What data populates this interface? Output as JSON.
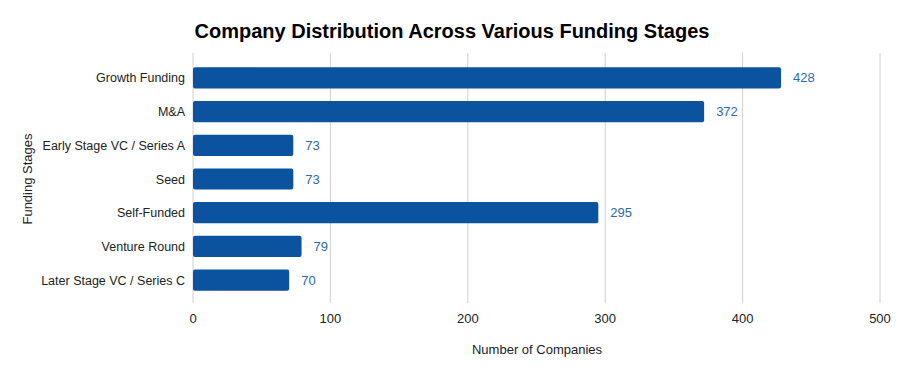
{
  "chart_data": {
    "type": "bar",
    "orientation": "horizontal",
    "title": "Company Distribution Across Various Funding Stages",
    "x_label": "Number of Companies",
    "y_label": "Funding Stages",
    "categories": [
      "Growth Funding",
      "M&A",
      "Early Stage VC / Series A",
      "Seed",
      "Self-Funded",
      "Venture Round",
      "Later Stage VC / Series C"
    ],
    "values": [
      428,
      372,
      73,
      73,
      295,
      79,
      70
    ],
    "color": "#0b539e",
    "xlim": [
      0,
      500
    ],
    "xticks": [
      0,
      100,
      200,
      300,
      400,
      500
    ],
    "grid": true,
    "data_labels": true
  }
}
